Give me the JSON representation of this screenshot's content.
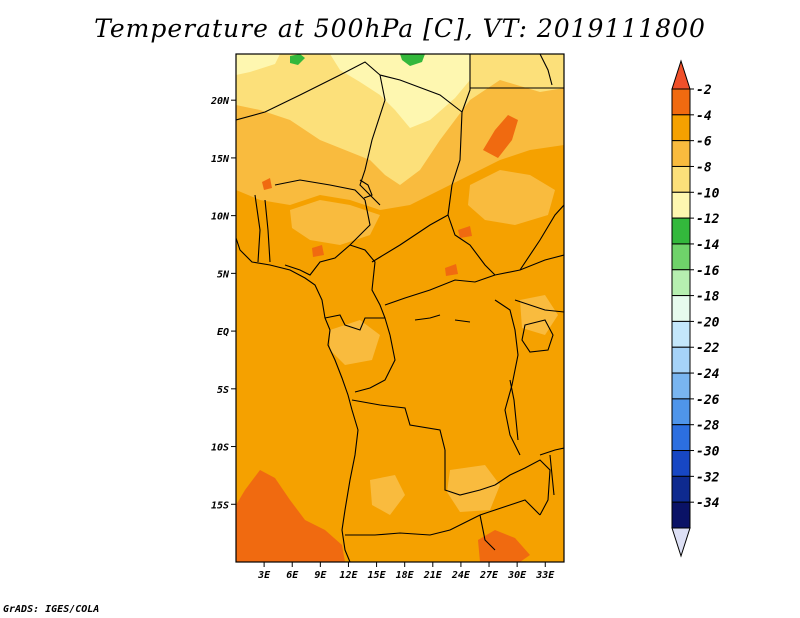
{
  "title": "Temperature at 500hPa [C], VT: 2019111800",
  "credit": "GrADS: IGES/COLA",
  "map": {
    "lon_range": [
      0,
      35
    ],
    "lat_range": [
      -20,
      24
    ],
    "lat_ticks": [
      {
        "value": 20,
        "label": "20N"
      },
      {
        "value": 15,
        "label": "15N"
      },
      {
        "value": 10,
        "label": "10N"
      },
      {
        "value": 5,
        "label": "5N"
      },
      {
        "value": 0,
        "label": "EQ"
      },
      {
        "value": -5,
        "label": "5S"
      },
      {
        "value": -10,
        "label": "10S"
      },
      {
        "value": -15,
        "label": "15S"
      }
    ],
    "lon_ticks": [
      {
        "value": 3,
        "label": "3E"
      },
      {
        "value": 6,
        "label": "6E"
      },
      {
        "value": 9,
        "label": "9E"
      },
      {
        "value": 12,
        "label": "12E"
      },
      {
        "value": 15,
        "label": "15E"
      },
      {
        "value": 18,
        "label": "18E"
      },
      {
        "value": 21,
        "label": "21E"
      },
      {
        "value": 24,
        "label": "24E"
      },
      {
        "value": 27,
        "label": "27E"
      },
      {
        "value": 30,
        "label": "30E"
      },
      {
        "value": 33,
        "label": "33E"
      }
    ]
  },
  "colorbar": {
    "labels": [
      "-2",
      "-4",
      "-6",
      "-8",
      "-10",
      "-12",
      "-14",
      "-16",
      "-18",
      "-20",
      "-22",
      "-24",
      "-26",
      "-28",
      "-30",
      "-32",
      "-34"
    ],
    "colors_top_to_bottom": [
      "#f0502a",
      "#f06a10",
      "#f5a100",
      "#f9bb3e",
      "#fce07a",
      "#fef7b0",
      "#33b83c",
      "#6fd36a",
      "#b6efb0",
      "#e7fbee",
      "#c4e7fb",
      "#a6d3f8",
      "#79b5f0",
      "#4f95ea",
      "#2c6fe0",
      "#1747c4",
      "#0e2a8f",
      "#0a1266",
      "#dde0f5"
    ]
  }
}
